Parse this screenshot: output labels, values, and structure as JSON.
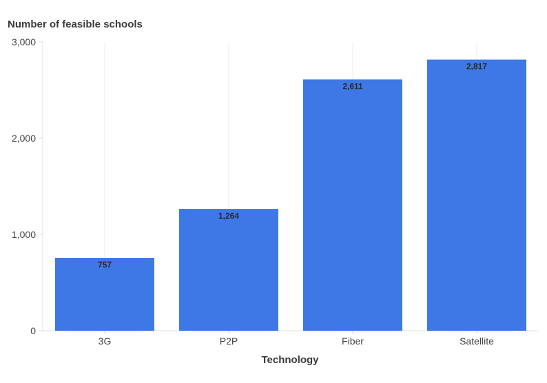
{
  "chart_data": {
    "type": "bar",
    "ylabel": "Number of feasible schools",
    "xlabel": "Technology",
    "categories": [
      "3G",
      "P2P",
      "Fiber",
      "Satellite"
    ],
    "values": [
      757,
      1264,
      2611,
      2817
    ],
    "value_labels": [
      "757",
      "1,264",
      "2,611",
      "2,817"
    ],
    "ylim": [
      0,
      3000
    ],
    "yticks": [
      0,
      1000,
      2000,
      3000
    ],
    "ytick_labels": [
      "0",
      "1,000",
      "2,000",
      "3,000"
    ],
    "bar_color": "#3d78e6",
    "grid": "vertical lines at category centers",
    "legend": "none"
  }
}
